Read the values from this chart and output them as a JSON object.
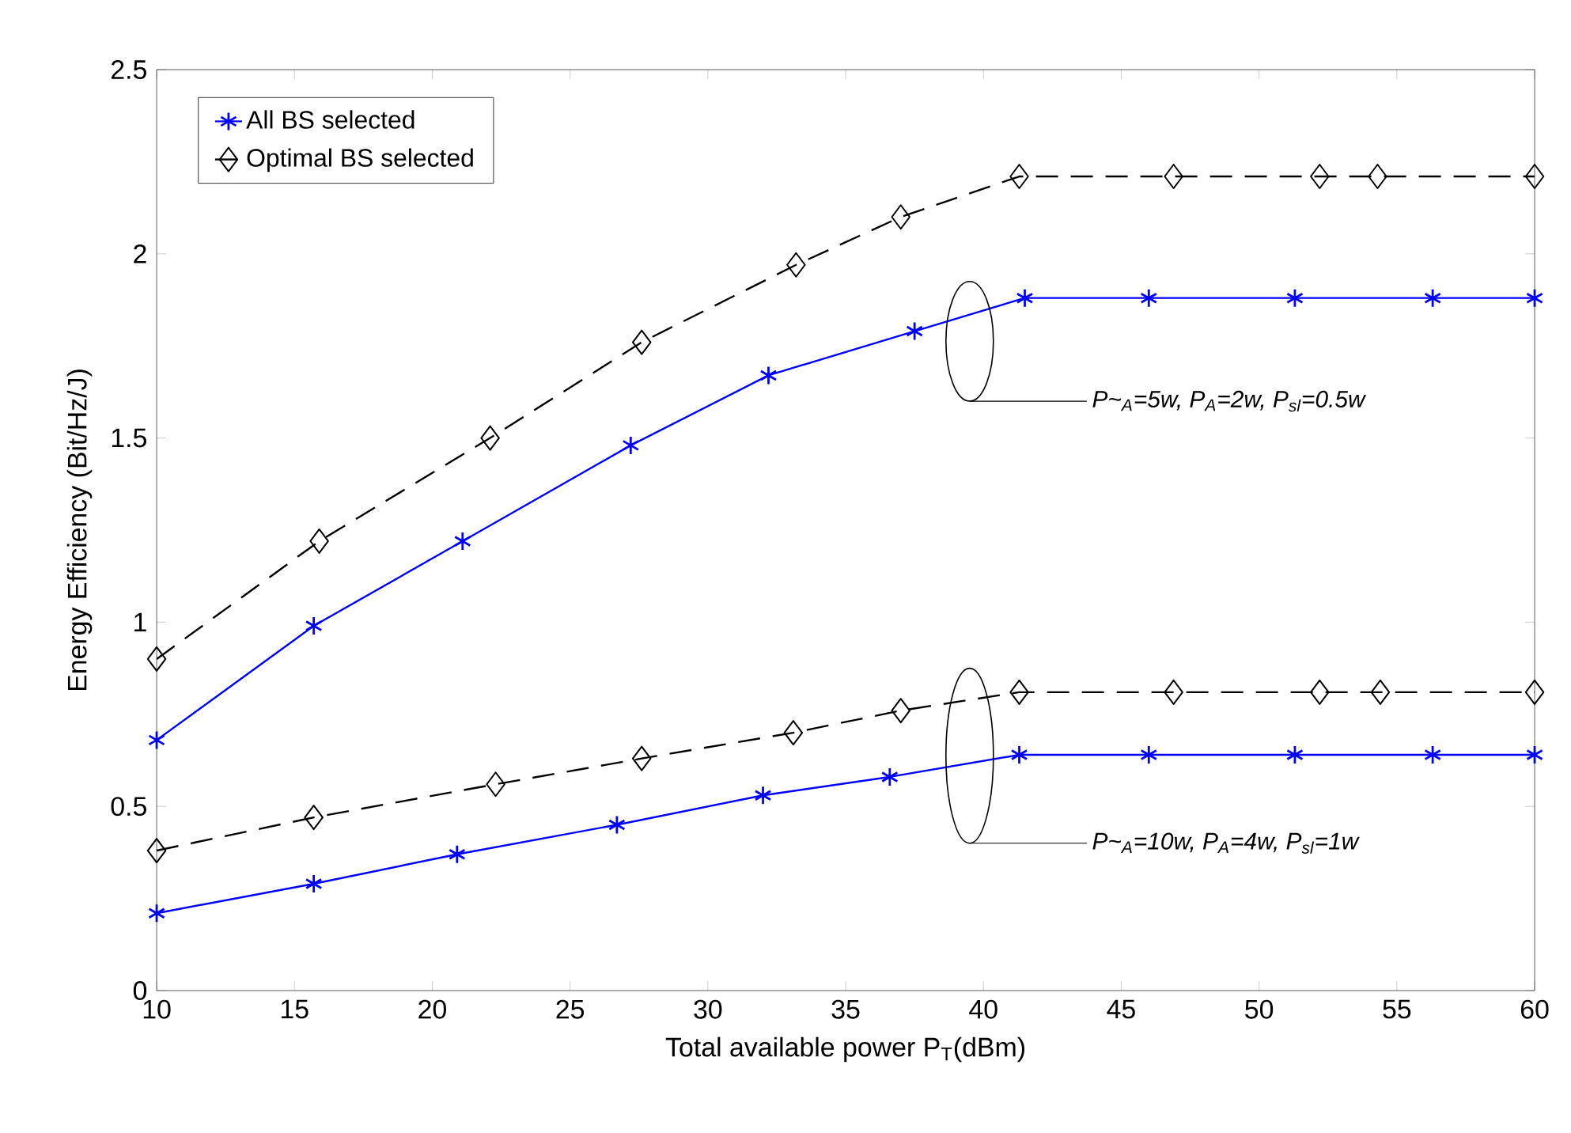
{
  "chart_data": {
    "type": "line",
    "xlabel": "Total available power P$_{T}$(dBm)",
    "ylabel": "Energy Efficiency (Bit/Hz/J)",
    "xlim": [
      10,
      60
    ],
    "ylim": [
      0,
      2.5
    ],
    "xticks": [
      10,
      15,
      20,
      25,
      30,
      35,
      40,
      45,
      50,
      55,
      60
    ],
    "yticks": [
      0,
      0.5,
      1,
      1.5,
      2,
      2.5
    ],
    "grid": false,
    "legend": "top left",
    "series": [
      {
        "name": "All BS selected",
        "color": "#0000ff",
        "marker": "cross",
        "line_style": "solid",
        "x": [
          10,
          15.7,
          21.1,
          27.2,
          32.2,
          37.5,
          41.5,
          46.0,
          51.3,
          56.3,
          60
        ],
        "values": [
          0.68,
          0.99,
          1.22,
          1.48,
          1.67,
          1.79,
          1.88,
          1.88,
          1.88,
          1.88,
          1.88
        ]
      },
      {
        "name": "Optimal BS selected",
        "color": "#000000",
        "marker": "diamond",
        "line_style": "dashed",
        "x": [
          10,
          15.9,
          22.1,
          27.6,
          33.2,
          37.0,
          41.3,
          46.9,
          52.2,
          54.3,
          60
        ],
        "values": [
          0.9,
          1.22,
          1.5,
          1.76,
          1.97,
          2.1,
          2.21,
          2.21,
          2.21,
          2.21,
          2.21
        ]
      },
      {
        "color": "#0000ff",
        "marker": "cross",
        "line_style": "solid",
        "x": [
          10,
          15.7,
          20.9,
          26.7,
          32.0,
          36.6,
          41.3,
          46.0,
          51.3,
          56.3,
          60
        ],
        "values": [
          0.21,
          0.29,
          0.37,
          0.45,
          0.53,
          0.58,
          0.64,
          0.64,
          0.64,
          0.64,
          0.64
        ]
      },
      {
        "color": "#000000",
        "marker": "diamond",
        "line_style": "dashed",
        "x": [
          10,
          15.7,
          22.3,
          27.6,
          33.1,
          37.0,
          41.3,
          46.9,
          52.2,
          54.4,
          60
        ],
        "values": [
          0.38,
          0.47,
          0.56,
          0.63,
          0.7,
          0.76,
          0.81,
          0.81,
          0.81,
          0.81,
          0.81
        ]
      }
    ],
    "annotations": [
      "P~$_{A}$=5w, P$_{A}$=2w, P$_{sl}$=0.5w",
      "P~$_{A}$=10w, P$_{A}$=4w, P$_{sl}$=1w"
    ]
  }
}
